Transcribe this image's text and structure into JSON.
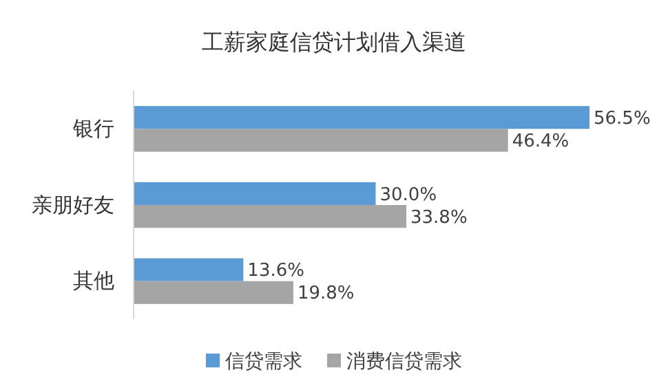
{
  "chart_data": {
    "type": "bar",
    "orientation": "horizontal",
    "title": "工薪家庭信贷计划借入渠道",
    "categories": [
      "银行",
      "亲朋好友",
      "其他"
    ],
    "series": [
      {
        "name": "信贷需求",
        "color": "#5b9bd5",
        "values": [
          56.5,
          30.0,
          13.6
        ],
        "value_labels": [
          "56.5%",
          "30.0%",
          "13.6%"
        ]
      },
      {
        "name": "消费信贷需求",
        "color": "#a5a5a5",
        "values": [
          46.4,
          33.8,
          19.8
        ],
        "value_labels": [
          "46.4%",
          "33.8%",
          "19.8%"
        ]
      }
    ],
    "tick_labels": "y",
    "legend": "bottom"
  }
}
